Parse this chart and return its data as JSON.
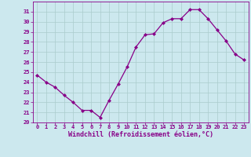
{
  "x": [
    0,
    1,
    2,
    3,
    4,
    5,
    6,
    7,
    8,
    9,
    10,
    11,
    12,
    13,
    14,
    15,
    16,
    17,
    18,
    19,
    20,
    21,
    22,
    23
  ],
  "y": [
    24.7,
    24.0,
    23.5,
    22.7,
    22.0,
    21.2,
    21.2,
    20.5,
    22.2,
    23.8,
    25.5,
    27.5,
    28.7,
    28.8,
    29.9,
    30.3,
    30.3,
    31.2,
    31.2,
    30.3,
    29.2,
    28.1,
    26.8,
    26.2
  ],
  "line_color": "#880088",
  "marker": "D",
  "marker_size": 2.0,
  "bg_color": "#cce8ee",
  "grid_color": "#aacccc",
  "xlabel": "Windchill (Refroidissement éolien,°C)",
  "xlabel_color": "#880088",
  "tick_color": "#880088",
  "ylim": [
    20,
    32
  ],
  "xlim": [
    -0.5,
    23.5
  ],
  "yticks": [
    20,
    21,
    22,
    23,
    24,
    25,
    26,
    27,
    28,
    29,
    30,
    31
  ],
  "xticks": [
    0,
    1,
    2,
    3,
    4,
    5,
    6,
    7,
    8,
    9,
    10,
    11,
    12,
    13,
    14,
    15,
    16,
    17,
    18,
    19,
    20,
    21,
    22,
    23
  ],
  "xtick_labels": [
    "0",
    "1",
    "2",
    "3",
    "4",
    "5",
    "6",
    "7",
    "8",
    "9",
    "10",
    "11",
    "12",
    "13",
    "14",
    "15",
    "16",
    "17",
    "18",
    "19",
    "20",
    "21",
    "22",
    "23"
  ],
  "ytick_labels": [
    "20",
    "21",
    "22",
    "23",
    "24",
    "25",
    "26",
    "27",
    "28",
    "29",
    "30",
    "31"
  ]
}
